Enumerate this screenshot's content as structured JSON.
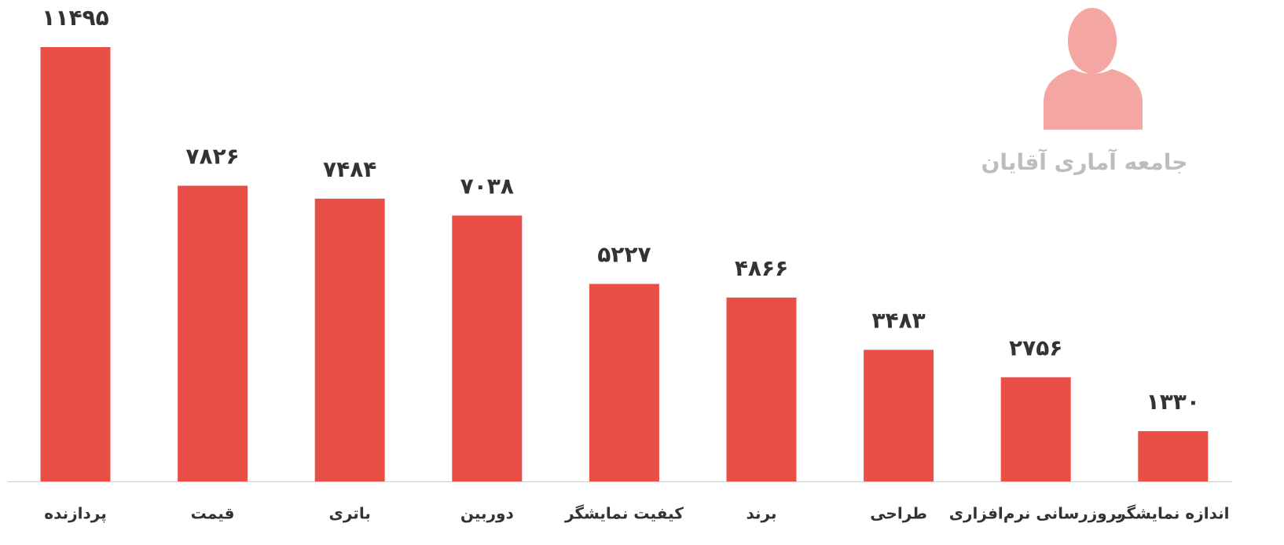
{
  "chart_data": {
    "type": "bar",
    "subtitle": "جامعه آماری آقایان",
    "categories": [
      "پردازنده",
      "قیمت",
      "باتری",
      "دوربین",
      "کیفیت نمایشگر",
      "برند",
      "طراحی",
      "بروزرسانی نرم‌افزاری",
      "اندازه نمایشگر"
    ],
    "values": [
      11495,
      7826,
      7484,
      7038,
      5227,
      4866,
      3483,
      2756,
      1330
    ],
    "value_labels": [
      "۱۱۴۹۵",
      "۷۸۲۶",
      "۷۴۸۴",
      "۷۰۳۸",
      "۵۲۲۷",
      "۴۸۶۶",
      "۳۴۸۳",
      "۲۷۵۶",
      "۱۳۳۰"
    ],
    "color": "#ea4f47"
  }
}
